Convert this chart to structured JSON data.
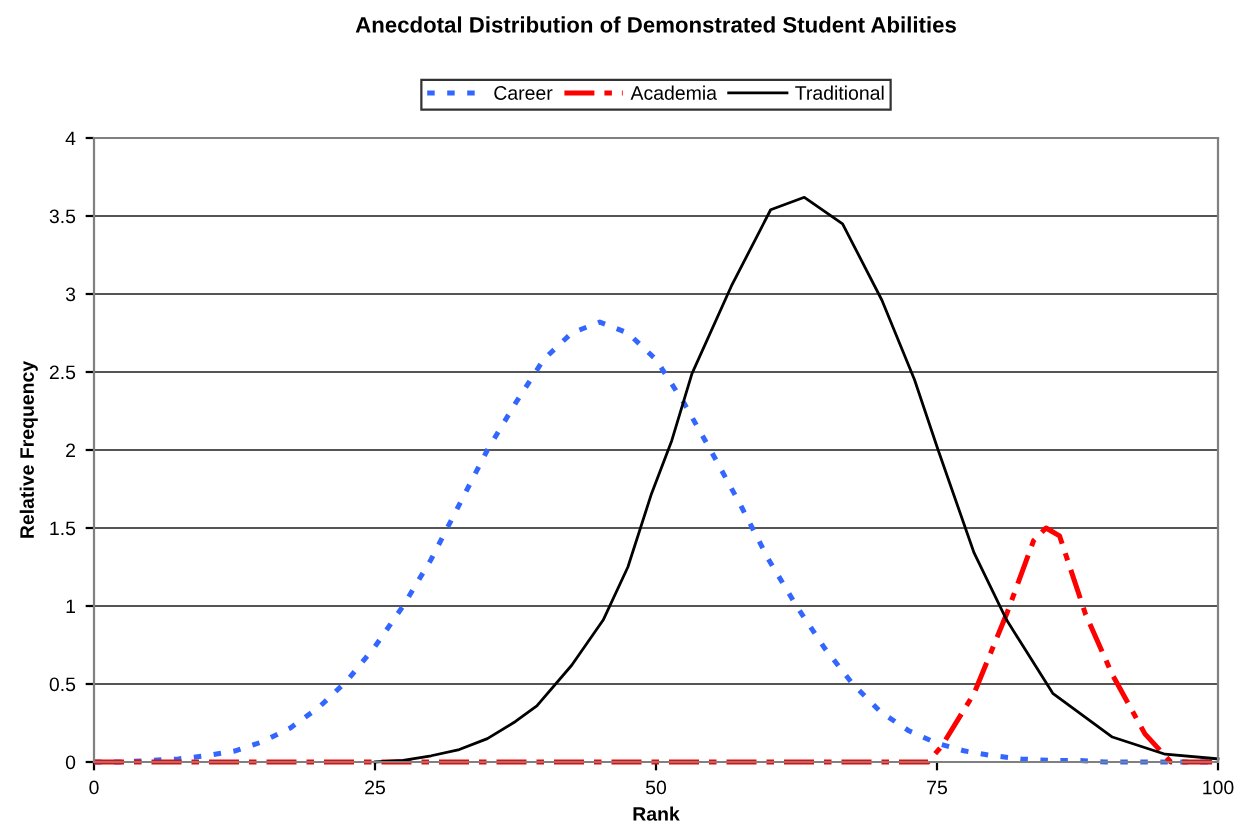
{
  "chart_data": {
    "type": "line",
    "title": "Anecdotal Distribution of Demonstrated Student Abilities",
    "xlabel": "Rank",
    "ylabel": "Relative Frequency",
    "xlim": [
      0,
      100
    ],
    "ylim": [
      0,
      4
    ],
    "xticks": [
      0,
      25,
      50,
      75,
      100
    ],
    "yticks": [
      0,
      0.5,
      1,
      1.5,
      2,
      2.5,
      3,
      3.5,
      4
    ],
    "grid": "y",
    "legend": "top",
    "marker": "none",
    "series": [
      {
        "name": "Career",
        "color": "#3366ff",
        "line_style": "dotted",
        "x": [
          0,
          2.5,
          5,
          7.5,
          10,
          12.5,
          15,
          17.5,
          20,
          22.5,
          25,
          27.5,
          30,
          32.5,
          35,
          37.5,
          40,
          42.5,
          45,
          47.5,
          50,
          52.5,
          55,
          57.5,
          60,
          62.5,
          65,
          67.5,
          70,
          72.5,
          75,
          77.5,
          80,
          82.5,
          85,
          87.5,
          90,
          95,
          100
        ],
        "values": [
          0,
          0,
          0.01,
          0.02,
          0.04,
          0.07,
          0.13,
          0.22,
          0.35,
          0.52,
          0.74,
          1.0,
          1.3,
          1.65,
          2.0,
          2.3,
          2.58,
          2.75,
          2.82,
          2.75,
          2.58,
          2.3,
          1.98,
          1.65,
          1.3,
          1.0,
          0.73,
          0.5,
          0.32,
          0.2,
          0.12,
          0.07,
          0.04,
          0.02,
          0.01,
          0.01,
          0,
          0,
          0
        ]
      },
      {
        "name": "Academia",
        "color": "#ff0000",
        "line_style": "dashdot",
        "x": [
          0,
          25,
          50,
          74.2,
          75.4,
          78.3,
          81.2,
          83.6,
          84.7,
          85.9,
          88.2,
          90.6,
          93.5,
          95.8,
          100
        ],
        "values": [
          0,
          0,
          0,
          0,
          0.1,
          0.44,
          0.95,
          1.42,
          1.5,
          1.45,
          0.95,
          0.56,
          0.18,
          0,
          0
        ]
      },
      {
        "name": "Traditional",
        "color": "#000000",
        "line_style": "solid",
        "x": [
          25,
          27.5,
          30,
          32.5,
          35,
          37.5,
          39.4,
          42.5,
          45.3,
          47.5,
          49.6,
          51.4,
          53.2,
          56.7,
          60.2,
          63.2,
          66.6,
          70.1,
          73,
          75.1,
          78.3,
          81.2,
          85.3,
          90.6,
          95.3,
          100
        ],
        "values": [
          0,
          0.01,
          0.04,
          0.08,
          0.15,
          0.26,
          0.36,
          0.62,
          0.91,
          1.25,
          1.72,
          2.06,
          2.49,
          3.05,
          3.54,
          3.62,
          3.45,
          2.96,
          2.45,
          2.0,
          1.34,
          0.91,
          0.44,
          0.16,
          0.05,
          0.02
        ]
      }
    ]
  }
}
